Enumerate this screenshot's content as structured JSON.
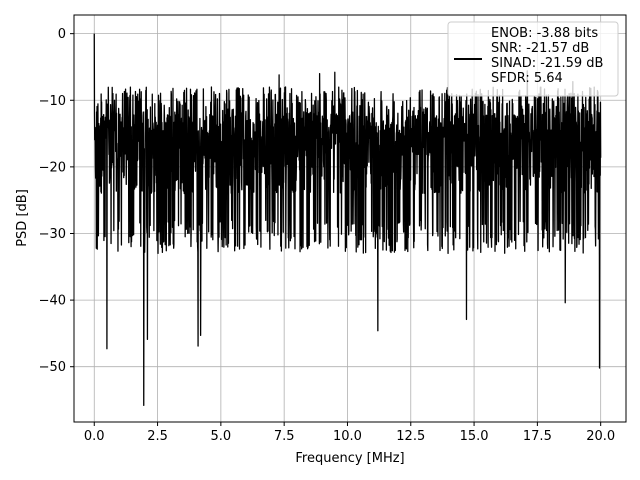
{
  "chart_data": {
    "type": "line",
    "title": "",
    "xlabel": "Frequency [MHz]",
    "ylabel": "PSD [dB]",
    "xlim": [
      -0.8,
      21.0
    ],
    "ylim": [
      -58.3,
      2.8
    ],
    "x_ticks": [
      0.0,
      2.5,
      5.0,
      7.5,
      10.0,
      12.5,
      15.0,
      17.5,
      20.0
    ],
    "x_tick_labels": [
      "0.0",
      "2.5",
      "5.0",
      "7.5",
      "10.0",
      "12.5",
      "15.0",
      "17.5",
      "20.0"
    ],
    "y_ticks": [
      0,
      -10,
      -20,
      -30,
      -40,
      -50
    ],
    "y_tick_labels": [
      "0",
      "−10",
      "−20",
      "−30",
      "−40",
      "−50"
    ],
    "grid": true,
    "legend_position": "top-right",
    "colors": {
      "line": "#000000",
      "grid": "#b0b0b0"
    },
    "series": [
      {
        "name": "ENOB: -3.88 bits\nSNR: -21.57 dB\nSINAD: -21.59 dB\nSFDR: 5.64",
        "x_range": [
          0.0,
          20.0
        ],
        "peak": {
          "x": 0.0,
          "y": 0.0
        },
        "noise_band_typical": [
          -28,
          -8
        ],
        "noise_floor_typical": -30,
        "notable_minima": [
          {
            "x": 0.5,
            "y": -47.3
          },
          {
            "x": 1.95,
            "y": -55.8
          },
          {
            "x": 2.1,
            "y": -45.9
          },
          {
            "x": 4.1,
            "y": -46.9
          },
          {
            "x": 4.2,
            "y": -45.3
          },
          {
            "x": 11.2,
            "y": -44.6
          },
          {
            "x": 14.7,
            "y": -42.9
          },
          {
            "x": 18.6,
            "y": -40.4
          },
          {
            "x": 19.95,
            "y": -50.2
          }
        ],
        "notable_maxima": [
          {
            "x": 7.3,
            "y": -6.2
          },
          {
            "x": 8.9,
            "y": -6.0
          },
          {
            "x": 9.5,
            "y": -5.8
          },
          {
            "x": 17.1,
            "y": -5.6
          },
          {
            "x": 18.9,
            "y": -7.2
          }
        ]
      }
    ]
  }
}
